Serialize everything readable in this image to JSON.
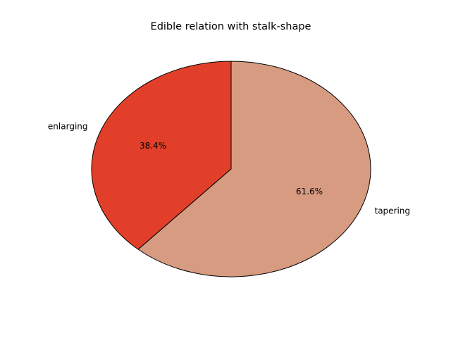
{
  "chart_data": {
    "type": "pie",
    "title": "Edible relation with stalk-shape",
    "slices": [
      {
        "label": "enlarging",
        "value": 38.4,
        "pct_label": "38.4%",
        "color": "#e13f29"
      },
      {
        "label": "tapering",
        "value": 61.6,
        "pct_label": "61.6%",
        "color": "#d79b81"
      }
    ],
    "start_angle_deg": 90,
    "direction": "counterclockwise",
    "edge_color": "#000000"
  }
}
